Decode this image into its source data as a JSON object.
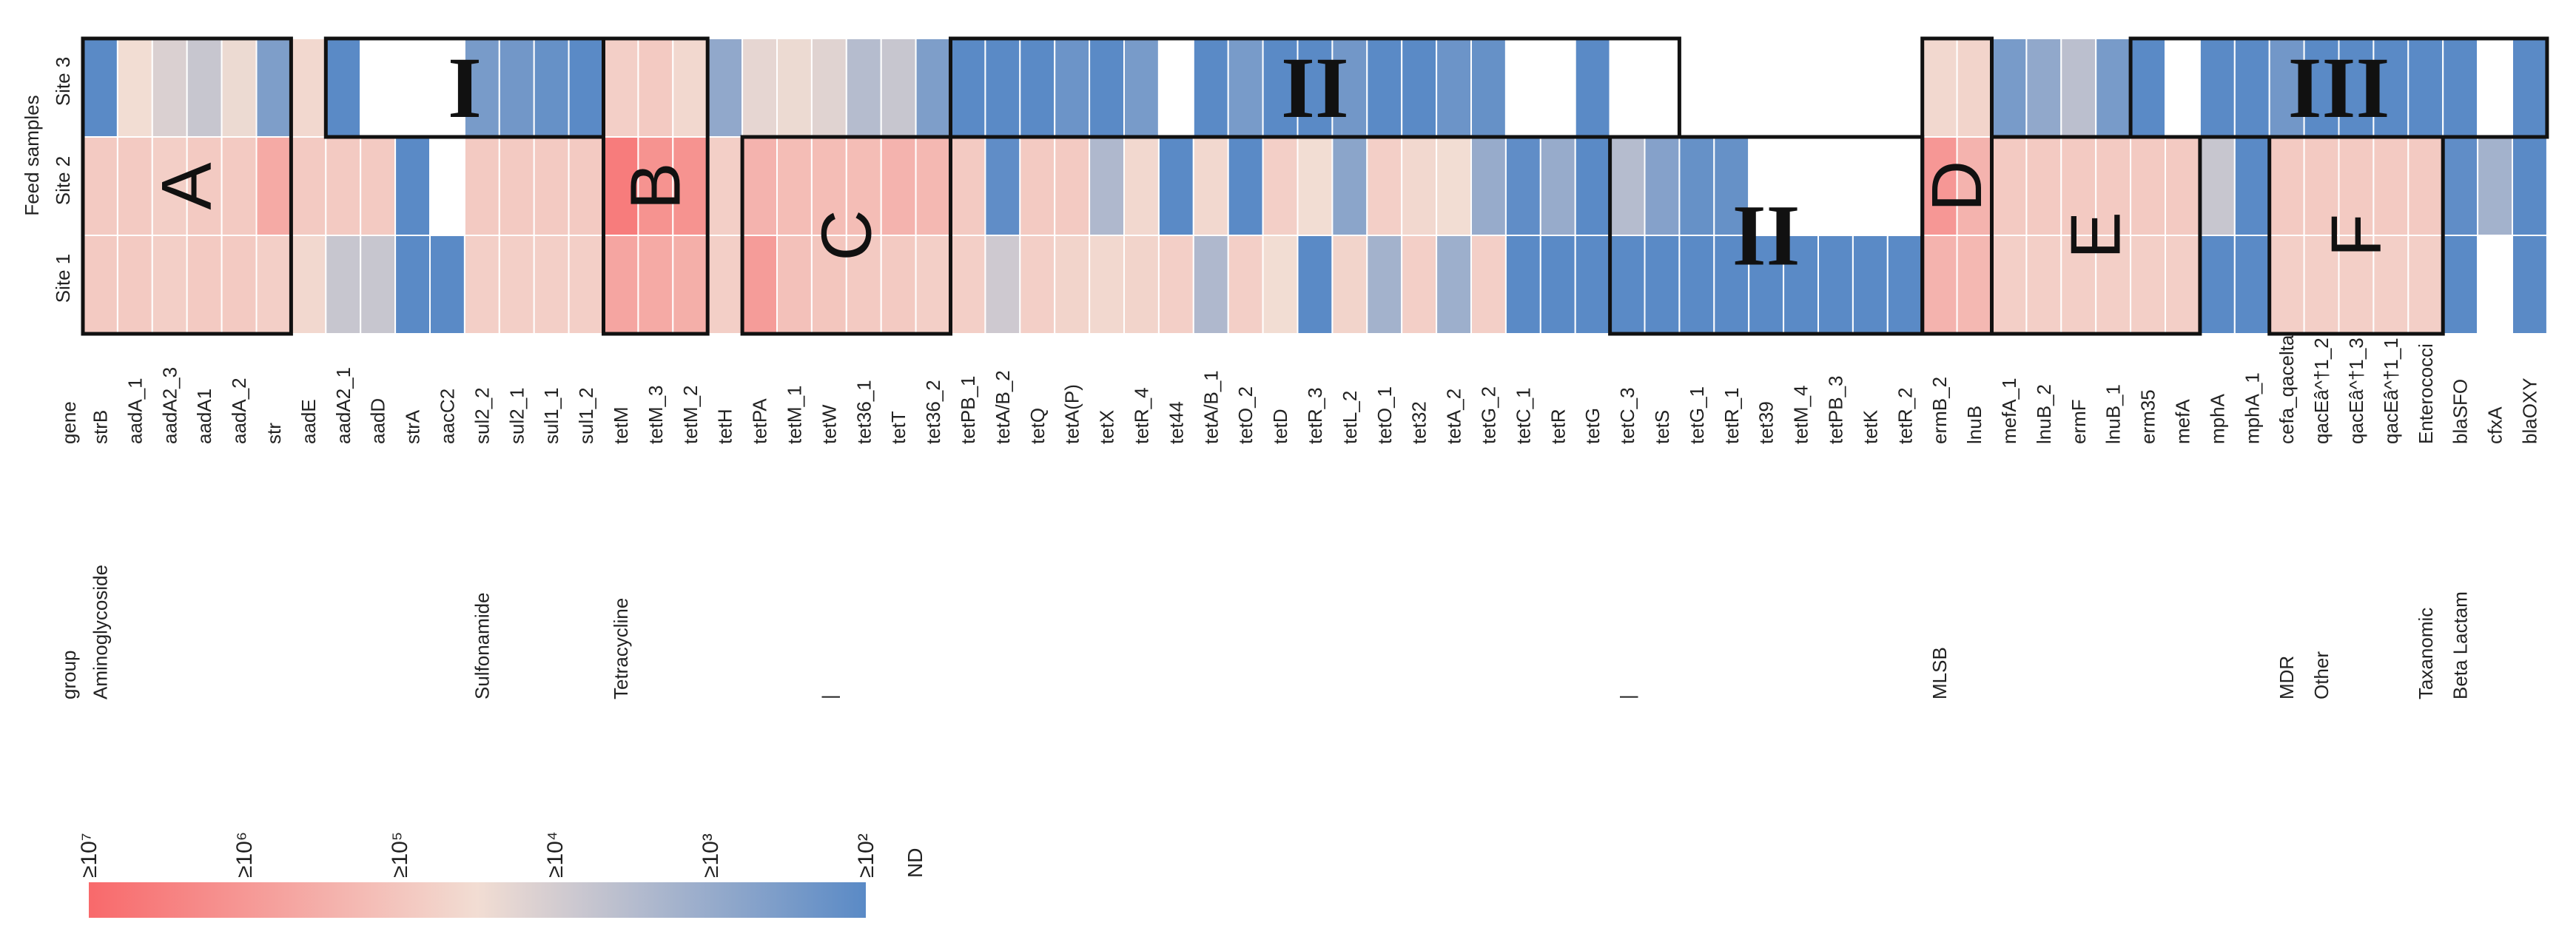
{
  "chart_data": {
    "type": "heatmap",
    "ylabel": "Feed samples",
    "rows": [
      "Site 3",
      "Site 2",
      "Site 1"
    ],
    "gene_header": "gene",
    "group_header": "group",
    "genes": [
      "strB",
      "aadA_1",
      "aadA2_3",
      "aadA1",
      "aadA_2",
      "str",
      "aadE",
      "aadA2_1",
      "aadD",
      "strA",
      "aacC2",
      "sul2_2",
      "sul2_1",
      "sul1_1",
      "sul1_2",
      "tetM",
      "tetM_3",
      "tetM_2",
      "tetH",
      "tetPA",
      "tetM_1",
      "tetW",
      "tet36_1",
      "tetT",
      "tet36_2",
      "tetPB_1",
      "tetA/B_2",
      "tetQ",
      "tetA(P)",
      "tetX",
      "tetR_4",
      "tet44",
      "tetA/B_1",
      "tetO_2",
      "tetD",
      "tetR_3",
      "tetL_2",
      "tetO_1",
      "tet32",
      "tetA_2",
      "tetG_2",
      "tetC_1",
      "tetR",
      "tetG",
      "tetC_3",
      "tetS",
      "tetG_1",
      "tetR_1",
      "tet39",
      "tetM_4",
      "tetPB_3",
      "tetK",
      "tetR_2",
      "ermB_2",
      "lnuB",
      "mefA_1",
      "lnuB_2",
      "ermF",
      "lnuB_1",
      "erm35",
      "mefA",
      "mphA",
      "mphA_1",
      "cefa_qacelta",
      "qacEâ^†1_2",
      "qacEâ^†1_3",
      "qacEâ^†1_1",
      "Enterococci",
      "blaSFO",
      "cfxA",
      "blaOXY"
    ],
    "groups": [
      {
        "label": "Aminoglycoside",
        "start_index": 0
      },
      {
        "label": "Sulfonamide",
        "start_index": 11
      },
      {
        "label": "Tetracycline",
        "start_index": 15
      },
      {
        "label": "|",
        "start_index": 21
      },
      {
        "label": "|",
        "start_index": 44
      },
      {
        "label": "MLSB",
        "start_index": 53
      },
      {
        "label": "MDR",
        "start_index": 63
      },
      {
        "label": "Other",
        "start_index": 64
      },
      {
        "label": "Taxanomic",
        "start_index": 67
      },
      {
        "label": "Beta Lactam",
        "start_index": 68
      }
    ],
    "legend": {
      "ticks": [
        "≥10⁷",
        "≥10⁶",
        "≥10⁵",
        "≥10⁴",
        "≥10³",
        "≥10²"
      ],
      "nd_label": "ND",
      "nd_text_color": "#ffffff"
    },
    "value_scale": "log10 copy number (7 = ≥10^7 ... 2 = ≥10^2); null = ND",
    "values": {
      "Site 3": [
        2.0,
        4.5,
        4.1,
        3.8,
        4.4,
        2.6,
        4.6,
        2.0,
        null,
        null,
        null,
        2.5,
        2.4,
        2.2,
        2.0,
        4.8,
        4.9,
        4.6,
        2.9,
        4.3,
        4.4,
        4.2,
        3.5,
        3.8,
        2.6,
        2.0,
        2.0,
        2.0,
        2.3,
        2.0,
        2.5,
        null,
        2.0,
        2.5,
        2.0,
        2.0,
        2.4,
        2.0,
        2.0,
        2.3,
        2.2,
        null,
        null,
        2.0,
        null,
        null,
        null,
        null,
        null,
        null,
        null,
        null,
        null,
        4.6,
        4.7,
        2.5,
        2.9,
        3.6,
        2.5,
        2.0,
        null,
        2.0,
        2.0,
        2.4,
        2.0,
        2.0,
        2.0,
        2.0,
        2.0,
        null,
        2.0
      ],
      "Site 2": [
        4.9,
        4.9,
        4.8,
        4.9,
        4.9,
        5.6,
        4.9,
        4.9,
        4.9,
        2.0,
        null,
        4.9,
        4.9,
        4.9,
        4.9,
        6.6,
        6.1,
        6.1,
        4.8,
        5.4,
        5.2,
        5.2,
        5.2,
        5.4,
        5.3,
        4.9,
        2.1,
        4.9,
        4.9,
        3.4,
        4.6,
        2.0,
        4.6,
        2.0,
        4.8,
        4.5,
        2.8,
        4.8,
        4.6,
        4.5,
        3.0,
        2.1,
        3.0,
        2.0,
        3.5,
        2.7,
        2.2,
        2.2,
        null,
        null,
        null,
        null,
        null,
        6.0,
        5.4,
        4.9,
        4.9,
        4.9,
        4.9,
        4.9,
        4.9,
        3.8,
        2.0,
        4.9,
        4.9,
        4.9,
        4.9,
        4.9,
        2.1,
        3.2,
        2.0
      ],
      "Site 1": [
        4.9,
        4.9,
        4.8,
        4.9,
        4.9,
        4.8,
        4.6,
        3.8,
        3.8,
        2.0,
        2.0,
        4.8,
        4.8,
        4.8,
        4.8,
        5.7,
        5.6,
        5.5,
        4.8,
        5.9,
        5.1,
        5.0,
        4.9,
        4.9,
        4.8,
        4.8,
        3.9,
        4.8,
        4.7,
        4.6,
        4.7,
        4.8,
        3.4,
        4.8,
        4.5,
        2.0,
        4.7,
        3.2,
        4.8,
        3.1,
        4.8,
        2.0,
        2.0,
        2.0,
        2.0,
        2.0,
        2.0,
        2.0,
        2.0,
        2.0,
        2.0,
        2.0,
        2.0,
        5.4,
        5.3,
        4.8,
        4.8,
        4.8,
        4.8,
        4.8,
        4.8,
        2.0,
        2.0,
        4.8,
        4.8,
        4.8,
        4.8,
        4.8,
        2.0,
        null,
        2.0
      ]
    },
    "blocks": [
      {
        "label": "A",
        "roman": false,
        "from_gene": 0,
        "to_gene": 5,
        "from_row": 0,
        "to_row": 2
      },
      {
        "label": "I",
        "roman": true,
        "from_gene": 7,
        "to_gene": 14,
        "from_row": 0,
        "to_row": 0
      },
      {
        "label": "B",
        "roman": false,
        "from_gene": 15,
        "to_gene": 17,
        "from_row": 0,
        "to_row": 2
      },
      {
        "label": "C",
        "roman": false,
        "from_gene": 19,
        "to_gene": 24,
        "from_row": 1,
        "to_row": 2
      },
      {
        "label": "II",
        "roman": true,
        "from_gene": 25,
        "to_gene": 45,
        "from_row": 0,
        "to_row": 0
      },
      {
        "label": "II",
        "roman": true,
        "from_gene": 44,
        "to_gene": 52,
        "from_row": 1,
        "to_row": 2
      },
      {
        "label": "D",
        "roman": false,
        "from_gene": 53,
        "to_gene": 54,
        "from_row": 0,
        "to_row": 2
      },
      {
        "label": "E",
        "roman": false,
        "from_gene": 55,
        "to_gene": 60,
        "from_row": 1,
        "to_row": 2
      },
      {
        "label": "III",
        "roman": true,
        "from_gene": 59,
        "to_gene": 70,
        "from_row": 0,
        "to_row": 0
      },
      {
        "label": "F",
        "roman": false,
        "from_gene": 63,
        "to_gene": 67,
        "from_row": 1,
        "to_row": 2
      }
    ]
  }
}
